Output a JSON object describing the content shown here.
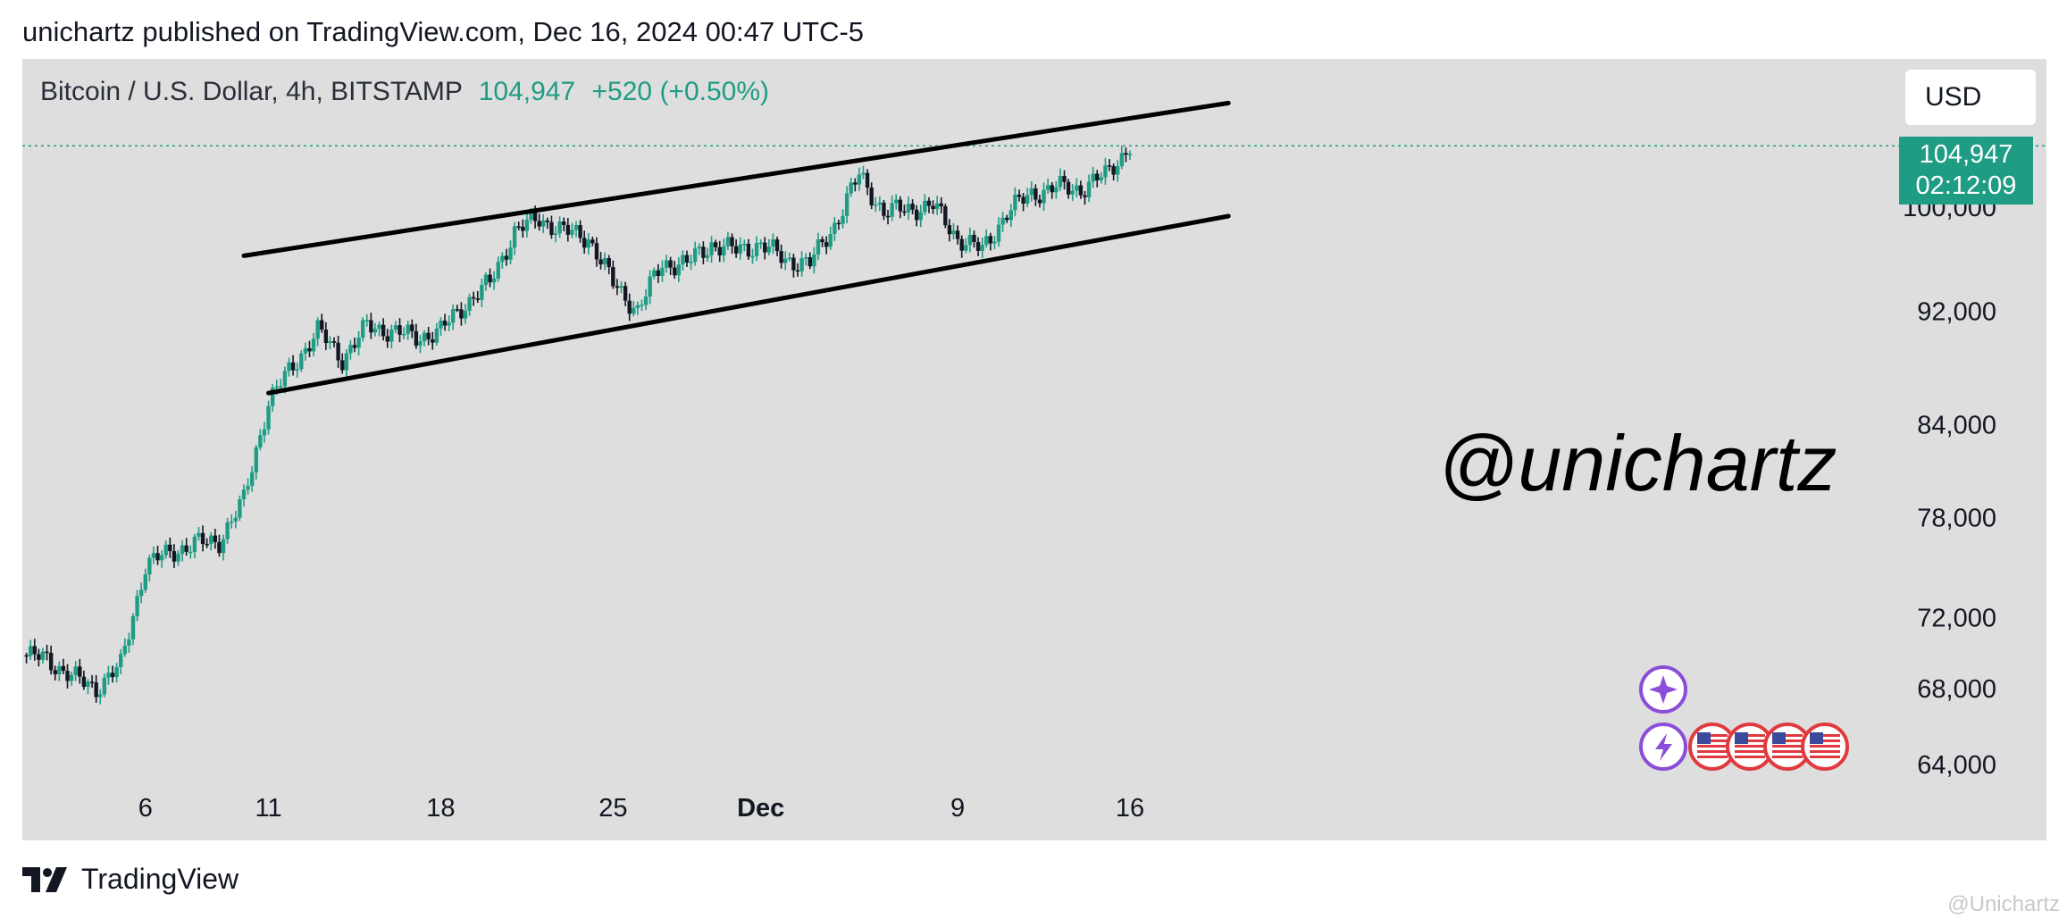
{
  "header": {
    "published_text": "unichartz published on TradingView.com, Dec 16, 2024 00:47 UTC-5"
  },
  "symbol": {
    "name": "Bitcoin / U.S. Dollar, 4h, BITSTAMP",
    "price": "104,947",
    "change": "+520 (+0.50%)"
  },
  "currency_label": "USD",
  "price_label": {
    "value": "104,947",
    "countdown": "02:12:09"
  },
  "watermark": "@unichartz",
  "footer": {
    "brand": "TradingView",
    "credit": "@Unichartz"
  },
  "colors": {
    "up": "#1f9c84",
    "down": "#131722",
    "background": "#dedede",
    "trendline": "#000000",
    "event_icon": "#8a4ed8",
    "flag_red": "#e0393e"
  },
  "icons": {
    "event_top": "sparkle-icon",
    "event_bottom": "lightning-icon",
    "flags": [
      "us-flag-icon",
      "us-flag-icon",
      "us-flag-icon",
      "us-flag-icon"
    ]
  },
  "chart_data": {
    "type": "candlestick",
    "title": "",
    "x_labels": [
      "6",
      "11",
      "18",
      "25",
      "Dec",
      "9",
      "16"
    ],
    "x_label_dates": [
      "2024-11-06",
      "2024-11-11",
      "2024-11-18",
      "2024-11-25",
      "2024-12-01",
      "2024-12-09",
      "2024-12-16"
    ],
    "x_range": [
      "2024-11-01",
      "2024-12-21"
    ],
    "y_ticks": [
      64000,
      68000,
      72000,
      78000,
      84000,
      92000,
      100000
    ],
    "y_scale": "log",
    "y_range": [
      63500,
      112500
    ],
    "last_price": 104947,
    "price_points": [
      [
        "2024-11-01",
        69800
      ],
      [
        "2024-11-02",
        69600
      ],
      [
        "2024-11-03",
        68600
      ],
      [
        "2024-11-04",
        68000
      ],
      [
        "2024-11-05",
        69200
      ],
      [
        "2024-11-06",
        75000
      ],
      [
        "2024-11-07",
        75800
      ],
      [
        "2024-11-08",
        76300
      ],
      [
        "2024-11-09",
        76500
      ],
      [
        "2024-11-10",
        79000
      ],
      [
        "2024-11-11",
        85500
      ],
      [
        "2024-11-12",
        88000
      ],
      [
        "2024-11-13",
        90500
      ],
      [
        "2024-11-14",
        88500
      ],
      [
        "2024-11-15",
        90800
      ],
      [
        "2024-11-16",
        90500
      ],
      [
        "2024-11-17",
        90000
      ],
      [
        "2024-11-18",
        90500
      ],
      [
        "2024-11-19",
        92500
      ],
      [
        "2024-11-20",
        94000
      ],
      [
        "2024-11-21",
        98000
      ],
      [
        "2024-11-22",
        99000
      ],
      [
        "2024-11-23",
        98000
      ],
      [
        "2024-11-24",
        97500
      ],
      [
        "2024-11-25",
        94000
      ],
      [
        "2024-11-26",
        92000
      ],
      [
        "2024-11-27",
        95500
      ],
      [
        "2024-11-28",
        95500
      ],
      [
        "2024-11-29",
        97000
      ],
      [
        "2024-11-30",
        96500
      ],
      [
        "2024-12-01",
        97000
      ],
      [
        "2024-12-02",
        95800
      ],
      [
        "2024-12-03",
        95500
      ],
      [
        "2024-12-04",
        98500
      ],
      [
        "2024-12-05",
        102500
      ],
      [
        "2024-12-06",
        99500
      ],
      [
        "2024-12-07",
        99800
      ],
      [
        "2024-12-08",
        100000
      ],
      [
        "2024-12-09",
        97500
      ],
      [
        "2024-12-10",
        96500
      ],
      [
        "2024-12-11",
        99500
      ],
      [
        "2024-12-12",
        101000
      ],
      [
        "2024-12-13",
        101500
      ],
      [
        "2024-12-14",
        101400
      ],
      [
        "2024-12-15",
        102500
      ],
      [
        "2024-12-16",
        104947
      ]
    ],
    "channel": {
      "upper": [
        [
          "2024-11-10",
          96100
        ],
        [
          "2024-12-20",
          108600
        ]
      ],
      "lower": [
        [
          "2024-11-11",
          86100
        ],
        [
          "2024-12-20",
          99200
        ]
      ]
    },
    "grid": false,
    "legend": "none"
  }
}
